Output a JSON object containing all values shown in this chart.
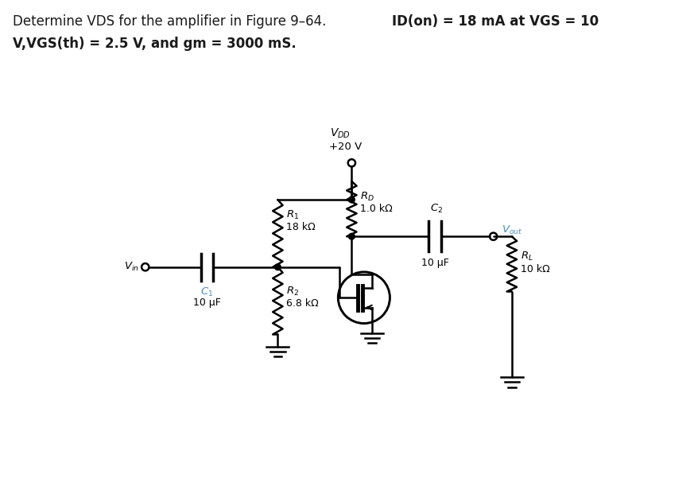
{
  "bg_color": "#ffffff",
  "line_color": "#000000",
  "blue_color": "#4B8BBE",
  "title_line1_normal": "Determine VDS for the amplifier in Figure 9–64. ",
  "title_line1_bold": "ID(on) = 18 mA at VGS = 10",
  "title_line2_bold": "V,VGS(th) = 2.5 V, and gm = 3000 mS.",
  "vdd_label": "$V_{DD}$",
  "vdd_val": "+20 V",
  "rd_label": "$R_D$",
  "rd_val": "1.0 kΩ",
  "r1_label": "$R_1$",
  "r1_val": "18 kΩ",
  "r2_label": "$R_2$",
  "r2_val": "6.8 kΩ",
  "c1_label": "$C_1$",
  "c1_val": "10 μF",
  "c2_label": "$C_2$",
  "c2_val": "10 μF",
  "rl_label": "$R_L$",
  "rl_val": "10 kΩ",
  "vin_label": "$V_{in}$",
  "vout_label": "$V_{out}$"
}
